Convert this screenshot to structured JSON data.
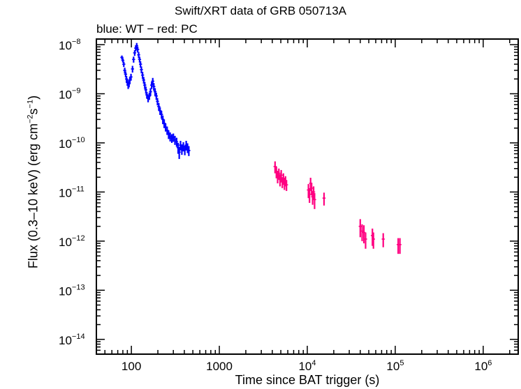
{
  "chart_data": {
    "type": "scatter",
    "title": "Swift/XRT data of GRB 050713A",
    "subtitle": "blue: WT − red: PC",
    "xlabel": "Time since BAT trigger (s)",
    "ylabel_parts": [
      "Flux (0.3–10 keV) (erg cm",
      "−2",
      "s",
      "−1",
      ")"
    ],
    "x_scale": "log",
    "y_scale": "log",
    "xlim": [
      40,
      2500000
    ],
    "ylim": [
      5e-15,
      1.3e-08
    ],
    "x_ticks": [
      {
        "value": 100,
        "base": "100",
        "exp": ""
      },
      {
        "value": 1000,
        "base": "1000",
        "exp": ""
      },
      {
        "value": 10000,
        "base": "10",
        "exp": "4"
      },
      {
        "value": 100000,
        "base": "10",
        "exp": "5"
      },
      {
        "value": 1000000,
        "base": "10",
        "exp": "6"
      }
    ],
    "y_ticks": [
      {
        "value": 1e-08,
        "base": "10",
        "exp": "−8"
      },
      {
        "value": 1e-09,
        "base": "10",
        "exp": "−9"
      },
      {
        "value": 1e-10,
        "base": "10",
        "exp": "−10"
      },
      {
        "value": 1e-11,
        "base": "10",
        "exp": "−11"
      },
      {
        "value": 1e-12,
        "base": "10",
        "exp": "−12"
      },
      {
        "value": 1e-13,
        "base": "10",
        "exp": "−13"
      },
      {
        "value": 1e-14,
        "base": "10",
        "exp": "−14"
      }
    ],
    "grid": false,
    "series": [
      {
        "color": "#0000ff",
        "points": [
          [
            78,
            5.5e-09,
            5e-10
          ],
          [
            80,
            4.8e-09,
            5e-10
          ],
          [
            82,
            4e-09,
            5e-10
          ],
          [
            84,
            3e-09,
            4e-10
          ],
          [
            86,
            2.5e-09,
            3.5e-10
          ],
          [
            88,
            2e-09,
            3e-10
          ],
          [
            90,
            1.7e-09,
            2.5e-10
          ],
          [
            92,
            1.5e-09,
            2.5e-10
          ],
          [
            94,
            1.6e-09,
            2.5e-10
          ],
          [
            96,
            1.9e-09,
            3e-10
          ],
          [
            99,
            2.2e-09,
            3.5e-10
          ],
          [
            103,
            3.2e-09,
            5e-10
          ],
          [
            106,
            5e-09,
            7e-10
          ],
          [
            109,
            6.8e-09,
            9e-10
          ],
          [
            112,
            8.5e-09,
            1.2e-09
          ],
          [
            115,
            9.5e-09,
            1.3e-09
          ],
          [
            118,
            8e-09,
            1.1e-09
          ],
          [
            121,
            6.2e-09,
            9e-10
          ],
          [
            124,
            5e-09,
            7e-10
          ],
          [
            127,
            4e-09,
            6e-10
          ],
          [
            130,
            3.1e-09,
            5e-10
          ],
          [
            134,
            2.4e-09,
            4e-10
          ],
          [
            138,
            1.9e-09,
            3e-10
          ],
          [
            142,
            1.5e-09,
            2.5e-10
          ],
          [
            146,
            1.2e-09,
            2e-10
          ],
          [
            150,
            9.5e-10,
            1.5e-10
          ],
          [
            155,
            8e-10,
            1.3e-10
          ],
          [
            160,
            9e-10,
            1.5e-10
          ],
          [
            165,
            1.1e-09,
            2e-10
          ],
          [
            170,
            1.5e-09,
            2.5e-10
          ],
          [
            175,
            1.8e-09,
            3e-10
          ],
          [
            180,
            1.4e-09,
            2.5e-10
          ],
          [
            186,
            1.1e-09,
            2e-10
          ],
          [
            192,
            9e-10,
            1.5e-10
          ],
          [
            198,
            7e-10,
            1.2e-10
          ],
          [
            205,
            5.5e-10,
            1e-10
          ],
          [
            212,
            4.5e-10,
            8e-11
          ],
          [
            220,
            3.8e-10,
            7e-11
          ],
          [
            228,
            3e-10,
            6e-11
          ],
          [
            236,
            2.5e-10,
            5e-11
          ],
          [
            245,
            2.1e-10,
            4e-11
          ],
          [
            255,
            1.8e-10,
            3.5e-11
          ],
          [
            265,
            1.5e-10,
            3e-11
          ],
          [
            276,
            1.35e-10,
            2.8e-11
          ],
          [
            288,
            1.25e-10,
            2.5e-11
          ],
          [
            300,
            1.3e-10,
            2.5e-11
          ],
          [
            313,
            1.15e-10,
            2.4e-11
          ],
          [
            327,
            1.05e-10,
            2.2e-11
          ],
          [
            340,
            8e-11,
            2e-11
          ],
          [
            350,
            6.5e-11,
            1.8e-11
          ],
          [
            362,
            9e-11,
            2e-11
          ],
          [
            375,
            7.5e-11,
            1.8e-11
          ],
          [
            390,
            8.5e-11,
            1.8e-11
          ],
          [
            405,
            7.2e-11,
            1.6e-11
          ],
          [
            420,
            9e-11,
            2e-11
          ],
          [
            435,
            8e-11,
            1.8e-11
          ],
          [
            450,
            7e-11,
            1.6e-11
          ]
        ]
      },
      {
        "color": "#ff0080",
        "points": [
          [
            4300,
            3.3e-11,
            9e-12
          ],
          [
            4450,
            2.6e-11,
            7e-12
          ],
          [
            4600,
            2.1e-11,
            6e-12
          ],
          [
            4750,
            2.4e-11,
            6e-12
          ],
          [
            4900,
            1.8e-11,
            5e-12
          ],
          [
            5050,
            2.2e-11,
            6e-12
          ],
          [
            5200,
            1.6e-11,
            4e-12
          ],
          [
            5350,
            1.9e-11,
            5e-12
          ],
          [
            5500,
            1.5e-11,
            4e-12
          ],
          [
            5650,
            1.7e-11,
            4e-12
          ],
          [
            5800,
            1.4e-11,
            3.5e-12
          ],
          [
            10300,
            1.1e-11,
            3.5e-12
          ],
          [
            10600,
            9e-12,
            3e-12
          ],
          [
            10900,
            1.5e-11,
            4.5e-12
          ],
          [
            11200,
            1.2e-11,
            3.5e-12
          ],
          [
            11500,
            8e-12,
            2.5e-12
          ],
          [
            11800,
            1e-11,
            3e-12
          ],
          [
            12100,
            7e-12,
            2.5e-12
          ],
          [
            15500,
            7.5e-12,
            2.2e-12
          ],
          [
            40000,
            2e-12,
            8e-13
          ],
          [
            42000,
            1.6e-12,
            6e-13
          ],
          [
            44000,
            1.5e-12,
            6e-13
          ],
          [
            46000,
            1.1e-12,
            4e-13
          ],
          [
            55000,
            1.3e-12,
            5e-13
          ],
          [
            56500,
            1.1e-12,
            4e-13
          ],
          [
            73000,
            1.1e-12,
            3.5e-13
          ],
          [
            108000,
            8.5e-13,
            3e-13
          ],
          [
            113000,
            8.5e-13,
            3e-13
          ]
        ]
      }
    ]
  }
}
